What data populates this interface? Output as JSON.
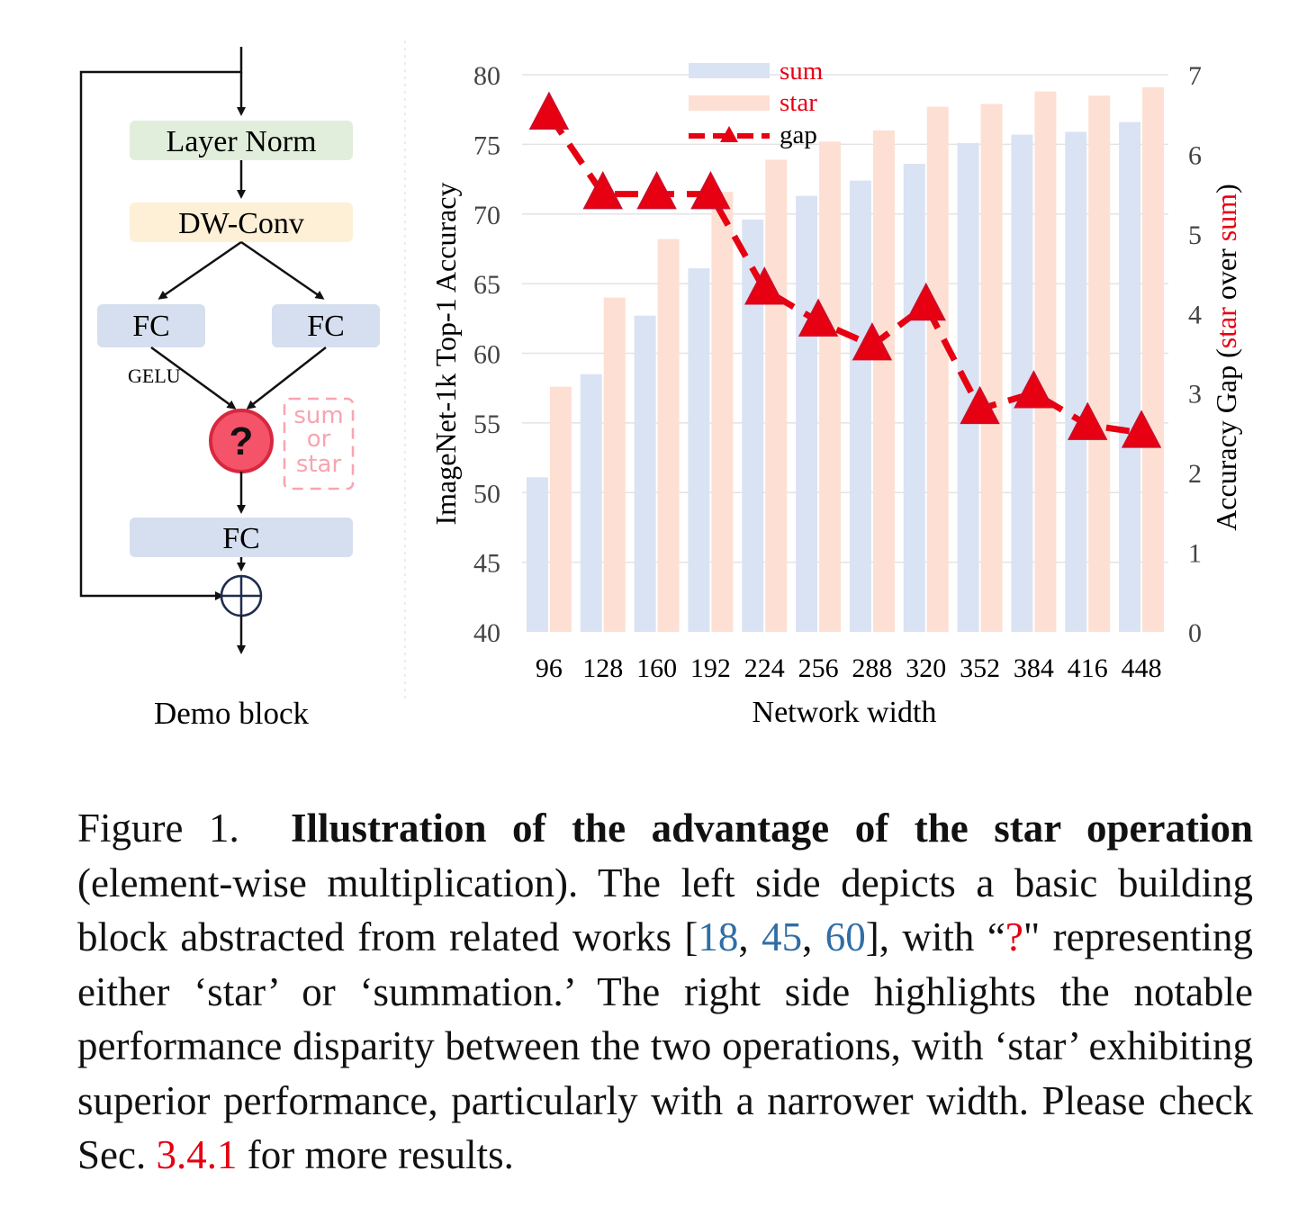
{
  "block": {
    "layer_norm": "Layer Norm",
    "dw_conv": "DW-Conv",
    "fc_left": "FC",
    "fc_right": "FC",
    "fc_bottom": "FC",
    "gelu": "GELU",
    "op_symbol": "?",
    "op_note": [
      "sum",
      "or",
      "star"
    ],
    "title": "Demo block",
    "colors": {
      "layer_norm": "#e2eedc",
      "dw_conv": "#fdf0d6",
      "fc": "#d6dff0",
      "op": "#f4536a",
      "op_note": "#f7a5b1"
    }
  },
  "chart_data": {
    "type": "bar",
    "xlabel": "Network width",
    "ylabel": "ImageNet-1k Top-1 Accuracy",
    "ylabel2_parts": [
      "Accuracy Gap (",
      "star",
      " over ",
      "sum",
      ")"
    ],
    "categories": [
      "96",
      "128",
      "160",
      "192",
      "224",
      "256",
      "288",
      "320",
      "352",
      "384",
      "416",
      "448"
    ],
    "ylim": [
      40,
      80
    ],
    "yticks": [
      "40",
      "45",
      "50",
      "55",
      "60",
      "65",
      "70",
      "75",
      "80"
    ],
    "y2lim": [
      0,
      7
    ],
    "y2ticks": [
      "0",
      "1",
      "2",
      "3",
      "4",
      "5",
      "6",
      "7"
    ],
    "series": [
      {
        "name": "sum",
        "kind": "bar",
        "axis": "left",
        "color": "#dae3f3",
        "values": [
          51.1,
          58.5,
          62.7,
          66.1,
          69.6,
          71.3,
          72.4,
          73.6,
          75.1,
          75.7,
          75.9,
          76.6
        ]
      },
      {
        "name": "star",
        "kind": "bar",
        "axis": "left",
        "color": "#fde0d3",
        "values": [
          57.6,
          64.0,
          68.2,
          71.6,
          73.9,
          75.2,
          76.0,
          77.7,
          77.9,
          78.8,
          78.5,
          79.1
        ]
      },
      {
        "name": "gap",
        "kind": "line",
        "axis": "right",
        "color": "#e60012",
        "values": [
          6.5,
          5.5,
          5.5,
          5.5,
          4.3,
          3.9,
          3.6,
          4.1,
          2.8,
          3.0,
          2.6,
          2.5
        ]
      }
    ],
    "legend_position": "top-center",
    "grid": true
  },
  "caption": {
    "label": "Figure 1.",
    "bold_title": "Illustration of the advantage of the star operation",
    "text1": " (element-wise multiplication). The left side depicts a basic building block abstracted from related works [",
    "ref1": "18",
    "sep1": ", ",
    "ref2": "45",
    "sep2": ", ",
    "ref3": "60",
    "text2": "], with “",
    "qmark": "?",
    "text3": "\" representing either ‘star’ or ‘summation.’ The right side highlights the notable performance disparity between the two operations, with ‘star’ exhibiting superior performance, particularly with a narrower width. Please check Sec. ",
    "section": "3.4.1",
    "text4": " for more results."
  }
}
